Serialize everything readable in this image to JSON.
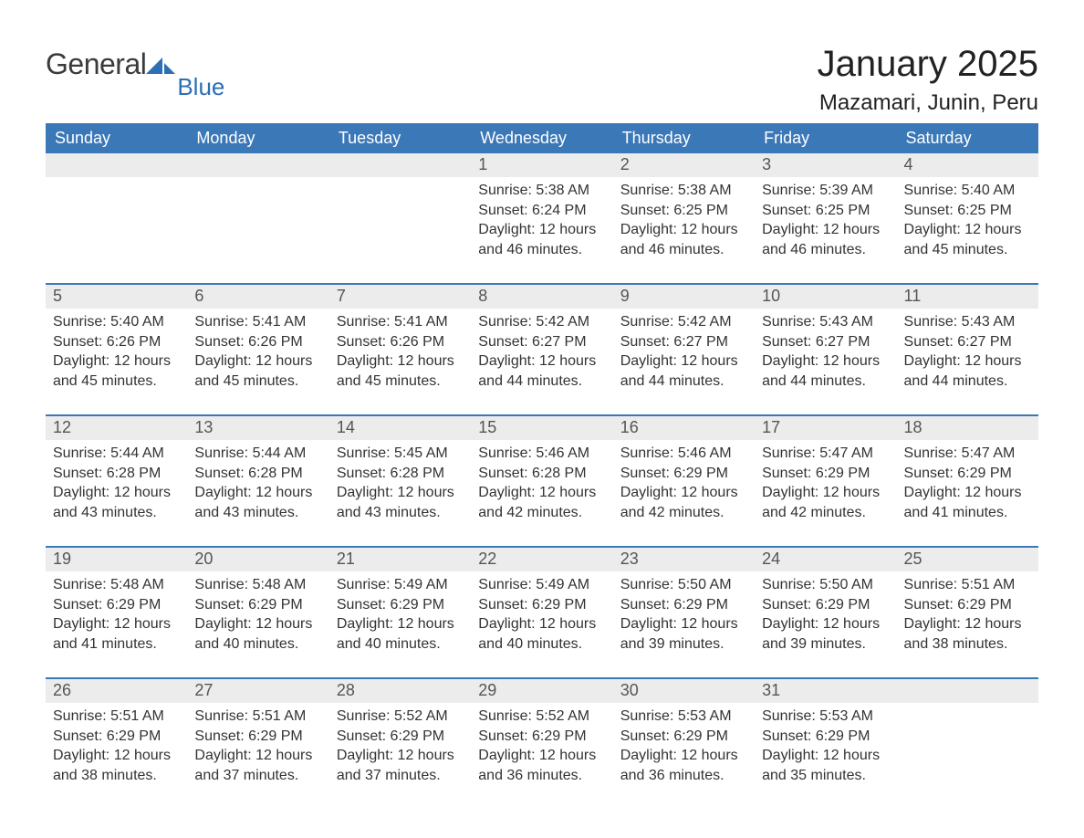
{
  "brand": {
    "general": "General",
    "blue": "Blue",
    "general_color": "#3b3b3b",
    "blue_color": "#2d6fb4",
    "sail_color": "#2d6fb4"
  },
  "header": {
    "title": "January 2025",
    "location": "Mazamari, Junin, Peru",
    "title_fontsize": 40,
    "location_fontsize": 24,
    "text_color": "#222222"
  },
  "calendar": {
    "header_bg": "#3b78b8",
    "header_text_color": "#ffffff",
    "daynum_bg": "#ececec",
    "daynum_text_color": "#555555",
    "body_text_color": "#333333",
    "week_divider_color": "#3b78b8",
    "day_headers": [
      "Sunday",
      "Monday",
      "Tuesday",
      "Wednesday",
      "Thursday",
      "Friday",
      "Saturday"
    ],
    "weeks": [
      [
        {
          "n": "",
          "sunrise": "",
          "sunset": "",
          "daylight": ""
        },
        {
          "n": "",
          "sunrise": "",
          "sunset": "",
          "daylight": ""
        },
        {
          "n": "",
          "sunrise": "",
          "sunset": "",
          "daylight": ""
        },
        {
          "n": "1",
          "sunrise": "Sunrise: 5:38 AM",
          "sunset": "Sunset: 6:24 PM",
          "daylight": "Daylight: 12 hours and 46 minutes."
        },
        {
          "n": "2",
          "sunrise": "Sunrise: 5:38 AM",
          "sunset": "Sunset: 6:25 PM",
          "daylight": "Daylight: 12 hours and 46 minutes."
        },
        {
          "n": "3",
          "sunrise": "Sunrise: 5:39 AM",
          "sunset": "Sunset: 6:25 PM",
          "daylight": "Daylight: 12 hours and 46 minutes."
        },
        {
          "n": "4",
          "sunrise": "Sunrise: 5:40 AM",
          "sunset": "Sunset: 6:25 PM",
          "daylight": "Daylight: 12 hours and 45 minutes."
        }
      ],
      [
        {
          "n": "5",
          "sunrise": "Sunrise: 5:40 AM",
          "sunset": "Sunset: 6:26 PM",
          "daylight": "Daylight: 12 hours and 45 minutes."
        },
        {
          "n": "6",
          "sunrise": "Sunrise: 5:41 AM",
          "sunset": "Sunset: 6:26 PM",
          "daylight": "Daylight: 12 hours and 45 minutes."
        },
        {
          "n": "7",
          "sunrise": "Sunrise: 5:41 AM",
          "sunset": "Sunset: 6:26 PM",
          "daylight": "Daylight: 12 hours and 45 minutes."
        },
        {
          "n": "8",
          "sunrise": "Sunrise: 5:42 AM",
          "sunset": "Sunset: 6:27 PM",
          "daylight": "Daylight: 12 hours and 44 minutes."
        },
        {
          "n": "9",
          "sunrise": "Sunrise: 5:42 AM",
          "sunset": "Sunset: 6:27 PM",
          "daylight": "Daylight: 12 hours and 44 minutes."
        },
        {
          "n": "10",
          "sunrise": "Sunrise: 5:43 AM",
          "sunset": "Sunset: 6:27 PM",
          "daylight": "Daylight: 12 hours and 44 minutes."
        },
        {
          "n": "11",
          "sunrise": "Sunrise: 5:43 AM",
          "sunset": "Sunset: 6:27 PM",
          "daylight": "Daylight: 12 hours and 44 minutes."
        }
      ],
      [
        {
          "n": "12",
          "sunrise": "Sunrise: 5:44 AM",
          "sunset": "Sunset: 6:28 PM",
          "daylight": "Daylight: 12 hours and 43 minutes."
        },
        {
          "n": "13",
          "sunrise": "Sunrise: 5:44 AM",
          "sunset": "Sunset: 6:28 PM",
          "daylight": "Daylight: 12 hours and 43 minutes."
        },
        {
          "n": "14",
          "sunrise": "Sunrise: 5:45 AM",
          "sunset": "Sunset: 6:28 PM",
          "daylight": "Daylight: 12 hours and 43 minutes."
        },
        {
          "n": "15",
          "sunrise": "Sunrise: 5:46 AM",
          "sunset": "Sunset: 6:28 PM",
          "daylight": "Daylight: 12 hours and 42 minutes."
        },
        {
          "n": "16",
          "sunrise": "Sunrise: 5:46 AM",
          "sunset": "Sunset: 6:29 PM",
          "daylight": "Daylight: 12 hours and 42 minutes."
        },
        {
          "n": "17",
          "sunrise": "Sunrise: 5:47 AM",
          "sunset": "Sunset: 6:29 PM",
          "daylight": "Daylight: 12 hours and 42 minutes."
        },
        {
          "n": "18",
          "sunrise": "Sunrise: 5:47 AM",
          "sunset": "Sunset: 6:29 PM",
          "daylight": "Daylight: 12 hours and 41 minutes."
        }
      ],
      [
        {
          "n": "19",
          "sunrise": "Sunrise: 5:48 AM",
          "sunset": "Sunset: 6:29 PM",
          "daylight": "Daylight: 12 hours and 41 minutes."
        },
        {
          "n": "20",
          "sunrise": "Sunrise: 5:48 AM",
          "sunset": "Sunset: 6:29 PM",
          "daylight": "Daylight: 12 hours and 40 minutes."
        },
        {
          "n": "21",
          "sunrise": "Sunrise: 5:49 AM",
          "sunset": "Sunset: 6:29 PM",
          "daylight": "Daylight: 12 hours and 40 minutes."
        },
        {
          "n": "22",
          "sunrise": "Sunrise: 5:49 AM",
          "sunset": "Sunset: 6:29 PM",
          "daylight": "Daylight: 12 hours and 40 minutes."
        },
        {
          "n": "23",
          "sunrise": "Sunrise: 5:50 AM",
          "sunset": "Sunset: 6:29 PM",
          "daylight": "Daylight: 12 hours and 39 minutes."
        },
        {
          "n": "24",
          "sunrise": "Sunrise: 5:50 AM",
          "sunset": "Sunset: 6:29 PM",
          "daylight": "Daylight: 12 hours and 39 minutes."
        },
        {
          "n": "25",
          "sunrise": "Sunrise: 5:51 AM",
          "sunset": "Sunset: 6:29 PM",
          "daylight": "Daylight: 12 hours and 38 minutes."
        }
      ],
      [
        {
          "n": "26",
          "sunrise": "Sunrise: 5:51 AM",
          "sunset": "Sunset: 6:29 PM",
          "daylight": "Daylight: 12 hours and 38 minutes."
        },
        {
          "n": "27",
          "sunrise": "Sunrise: 5:51 AM",
          "sunset": "Sunset: 6:29 PM",
          "daylight": "Daylight: 12 hours and 37 minutes."
        },
        {
          "n": "28",
          "sunrise": "Sunrise: 5:52 AM",
          "sunset": "Sunset: 6:29 PM",
          "daylight": "Daylight: 12 hours and 37 minutes."
        },
        {
          "n": "29",
          "sunrise": "Sunrise: 5:52 AM",
          "sunset": "Sunset: 6:29 PM",
          "daylight": "Daylight: 12 hours and 36 minutes."
        },
        {
          "n": "30",
          "sunrise": "Sunrise: 5:53 AM",
          "sunset": "Sunset: 6:29 PM",
          "daylight": "Daylight: 12 hours and 36 minutes."
        },
        {
          "n": "31",
          "sunrise": "Sunrise: 5:53 AM",
          "sunset": "Sunset: 6:29 PM",
          "daylight": "Daylight: 12 hours and 35 minutes."
        },
        {
          "n": "",
          "sunrise": "",
          "sunset": "",
          "daylight": ""
        }
      ]
    ]
  }
}
